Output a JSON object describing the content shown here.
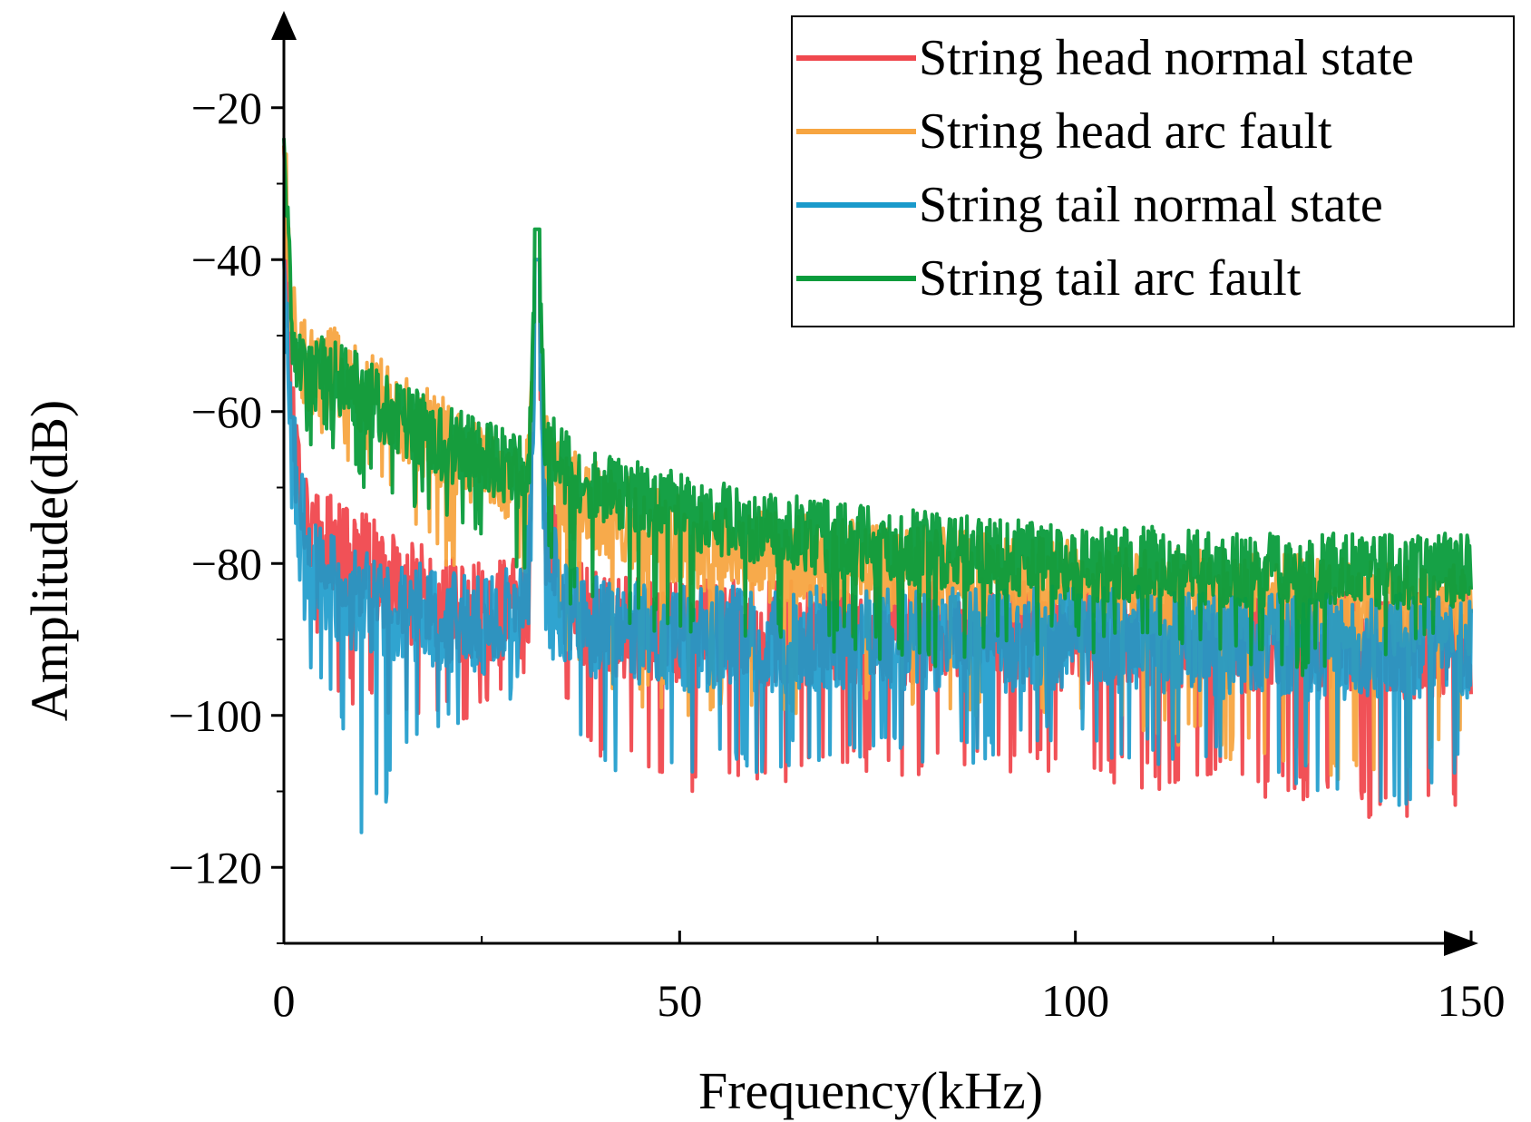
{
  "chart_data": {
    "type": "line",
    "title": "",
    "xlabel": "Frequency(kHz)",
    "ylabel": "Amplitude(dB)",
    "xlim": [
      0,
      150
    ],
    "ylim": [
      -130,
      -10
    ],
    "xticks": [
      0,
      50,
      100,
      150
    ],
    "xtick_labels": [
      "0",
      "50",
      "100",
      "150"
    ],
    "yticks": [
      -20,
      -40,
      -60,
      -80,
      -100,
      -120
    ],
    "ytick_labels": [
      "−20",
      "−40",
      "−60",
      "−80",
      "−100",
      "−120"
    ],
    "grid": false,
    "legend_position": "top-right",
    "noisy_spectrum": true,
    "series": [
      {
        "name": "String head normal state",
        "color": "#f0484e",
        "x": [
          0,
          1,
          2,
          3,
          5,
          8,
          10,
          15,
          20,
          25,
          30,
          31,
          32,
          33,
          35,
          40,
          50,
          60,
          70,
          80,
          90,
          100,
          110,
          120,
          130,
          140,
          150
        ],
        "mean": [
          -25,
          -58,
          -68,
          -74,
          -77,
          -79,
          -80,
          -83,
          -86,
          -87,
          -86,
          -84,
          -40,
          -72,
          -84,
          -88,
          -89,
          -89,
          -89,
          -89,
          -89,
          -90,
          -90,
          -90,
          -90,
          -91,
          -91
        ],
        "spread": 7,
        "min": [
          -25,
          -70,
          -80,
          -90,
          -95,
          -98,
          -100,
          -103,
          -102,
          -100,
          -97,
          -90,
          -40,
          -82,
          -100,
          -106,
          -110,
          -110,
          -108,
          -108,
          -108,
          -108,
          -110,
          -110,
          -112,
          -115,
          -112
        ]
      },
      {
        "name": "String head arc fault",
        "color": "#f7a541",
        "x": [
          0,
          1,
          2,
          3,
          5,
          8,
          10,
          15,
          20,
          25,
          30,
          31,
          32,
          33,
          35,
          40,
          50,
          60,
          70,
          80,
          90,
          100,
          110,
          120,
          130,
          140,
          150
        ],
        "mean": [
          -25,
          -48,
          -52,
          -55,
          -54,
          -55,
          -57,
          -61,
          -64,
          -67,
          -69,
          -68,
          -40,
          -66,
          -70,
          -73,
          -77,
          -79,
          -80,
          -81,
          -82,
          -83,
          -84,
          -84,
          -85,
          -86,
          -86
        ],
        "spread": 6,
        "min": [
          -25,
          -55,
          -60,
          -64,
          -63,
          -67,
          -68,
          -75,
          -80,
          -82,
          -83,
          -80,
          -40,
          -80,
          -92,
          -98,
          -100,
          -100,
          -100,
          -100,
          -102,
          -102,
          -104,
          -106,
          -108,
          -110,
          -105
        ]
      },
      {
        "name": "String tail normal state",
        "color": "#1a9acb",
        "x": [
          0,
          1,
          2,
          3,
          5,
          8,
          10,
          15,
          20,
          25,
          30,
          31,
          32,
          33,
          35,
          40,
          50,
          60,
          70,
          80,
          90,
          100,
          110,
          120,
          130,
          140,
          150
        ],
        "mean": [
          -40,
          -64,
          -72,
          -79,
          -82,
          -84,
          -85,
          -86,
          -87,
          -88,
          -87,
          -80,
          -40,
          -76,
          -86,
          -89,
          -90,
          -90,
          -90,
          -90,
          -90,
          -90,
          -90,
          -91,
          -91,
          -91,
          -91
        ],
        "spread": 7,
        "min": [
          -40,
          -75,
          -85,
          -95,
          -98,
          -105,
          -117,
          -108,
          -103,
          -100,
          -98,
          -90,
          -40,
          -90,
          -100,
          -108,
          -108,
          -108,
          -106,
          -107,
          -106,
          -105,
          -107,
          -108,
          -110,
          -113,
          -108
        ]
      },
      {
        "name": "String tail arc fault",
        "color": "#0a9c3c",
        "x": [
          0,
          1,
          2,
          3,
          5,
          8,
          10,
          15,
          20,
          25,
          30,
          31,
          32,
          33,
          35,
          40,
          50,
          60,
          70,
          80,
          90,
          100,
          110,
          120,
          130,
          140,
          150
        ],
        "mean": [
          -24,
          -50,
          -54,
          -56,
          -55,
          -56,
          -58,
          -61,
          -64,
          -66,
          -68,
          -66,
          -36,
          -64,
          -67,
          -70,
          -73,
          -75,
          -77,
          -78,
          -79,
          -80,
          -80,
          -81,
          -81,
          -81,
          -81
        ],
        "spread": 5,
        "min": [
          -24,
          -58,
          -62,
          -65,
          -65,
          -67,
          -70,
          -73,
          -75,
          -78,
          -82,
          -80,
          -36,
          -78,
          -85,
          -88,
          -90,
          -90,
          -92,
          -95,
          -92,
          -92,
          -93,
          -93,
          -95,
          -95,
          -90
        ]
      }
    ]
  }
}
